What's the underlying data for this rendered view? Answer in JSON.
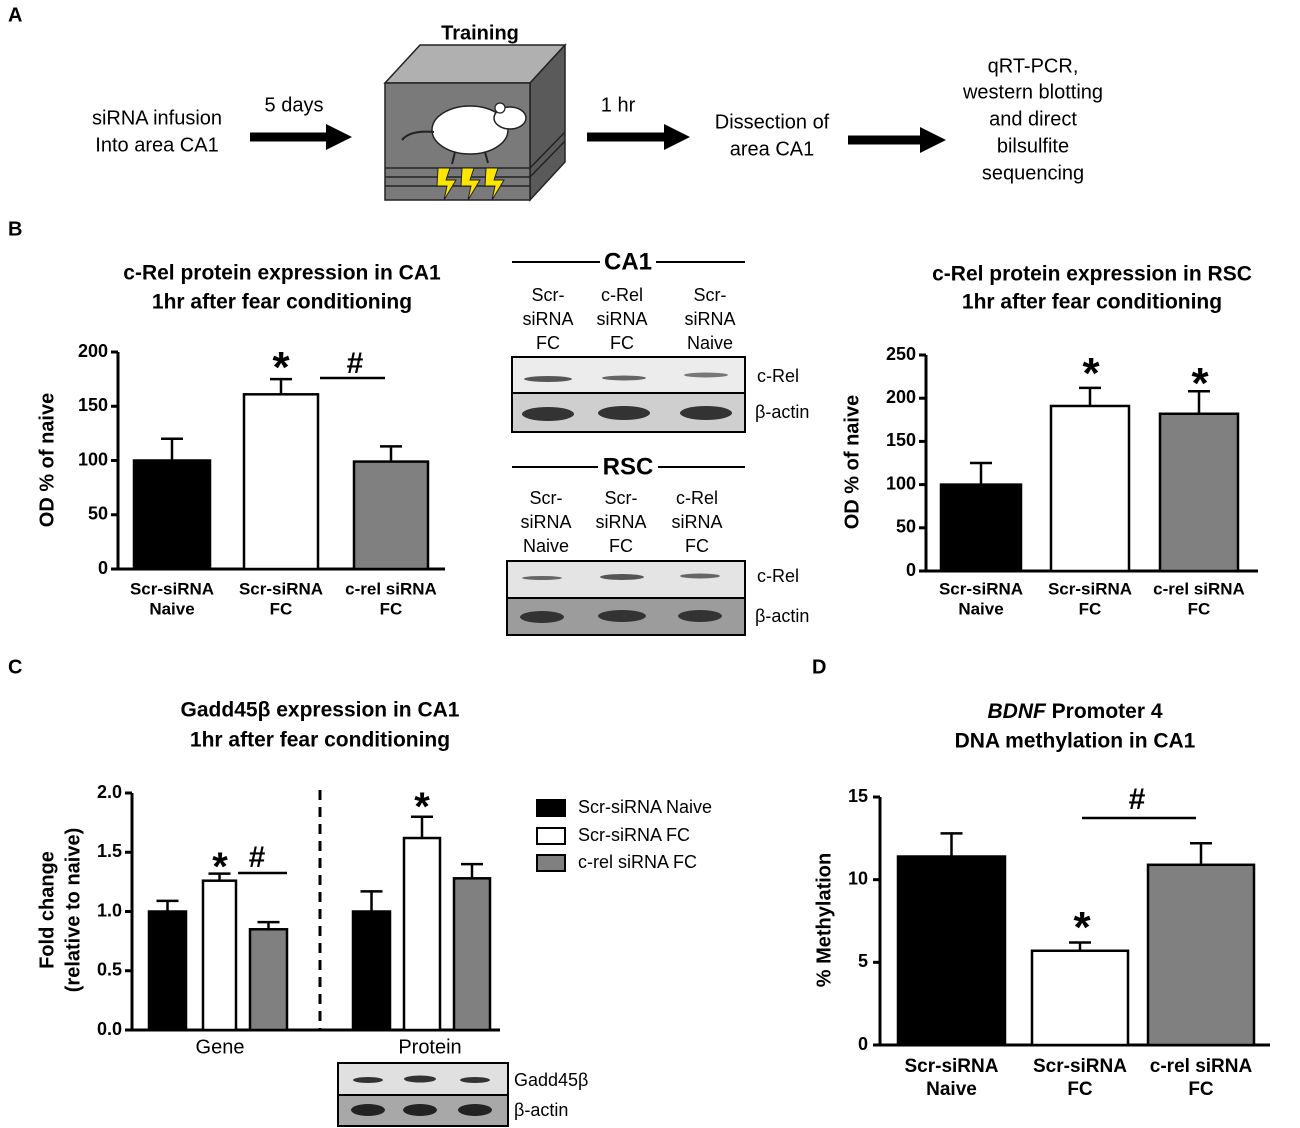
{
  "panels": [
    "A",
    "B",
    "C",
    "D"
  ],
  "diagram": {
    "infusion": [
      "siRNA infusion",
      "Into area CA1"
    ],
    "delay1": "5 days",
    "training": "Training",
    "delay2": "1 hr",
    "dissection": [
      "Dissection of",
      "area CA1"
    ],
    "analysis": [
      "qRT-PCR,",
      "western blotting",
      "and direct",
      "bilsulfite",
      "sequencing"
    ]
  },
  "blots": {
    "ca1": {
      "title": "CA1",
      "lanes": [
        [
          "Scr-",
          "siRNA",
          "FC"
        ],
        [
          "c-Rel",
          "siRNA",
          "FC"
        ],
        [
          "Scr-",
          "siRNA",
          "Naive"
        ]
      ],
      "bands": [
        "c-Rel",
        "β-actin"
      ]
    },
    "rsc": {
      "title": "RSC",
      "lanes": [
        [
          "Scr-",
          "siRNA",
          "Naive"
        ],
        [
          "Scr-",
          "siRNA",
          "FC"
        ],
        [
          "c-Rel",
          "siRNA",
          "FC"
        ]
      ],
      "bands": [
        "c-Rel",
        "β-actin"
      ]
    },
    "gadd": {
      "bands": [
        "Gadd45β",
        "β-actin"
      ]
    }
  },
  "chart_data": [
    {
      "type": "bar",
      "title": [
        "c-Rel protein expression in CA1",
        "1hr after fear conditioning"
      ],
      "ylabel": [
        "OD % of naive"
      ],
      "categories": [
        [
          "Scr-siRNA",
          "Naive"
        ],
        [
          "Scr-siRNA",
          "FC"
        ],
        [
          "c-rel siRNA",
          "FC"
        ]
      ],
      "values": [
        100,
        161,
        99
      ],
      "errors": [
        20,
        14,
        14
      ],
      "colors": [
        "#000000",
        "#ffffff",
        "#808080"
      ],
      "ylim": [
        0,
        200
      ],
      "yticks": [
        0,
        50,
        100,
        150,
        200
      ],
      "annotations": [
        "*",
        "#"
      ]
    },
    {
      "type": "bar",
      "title": [
        "c-Rel protein expression in RSC",
        "1hr after fear conditioning"
      ],
      "ylabel": [
        "OD % of naive"
      ],
      "categories": [
        [
          "Scr-siRNA",
          "Naive"
        ],
        [
          "Scr-siRNA",
          "FC"
        ],
        [
          "c-rel siRNA",
          "FC"
        ]
      ],
      "values": [
        100,
        191,
        182
      ],
      "errors": [
        25,
        21,
        26
      ],
      "colors": [
        "#000000",
        "#ffffff",
        "#808080"
      ],
      "ylim": [
        0,
        250
      ],
      "yticks": [
        0,
        50,
        100,
        150,
        200,
        250
      ],
      "annotations": [
        "*",
        "*"
      ]
    },
    {
      "type": "bar",
      "title": [
        "Gadd45β expression in CA1",
        "1hr after fear conditioning"
      ],
      "ylabel": [
        "Fold change",
        "(relative to naive)"
      ],
      "categories": [
        "Gene",
        "Protein"
      ],
      "series": [
        {
          "name": "Scr-siRNA Naive",
          "color": "#000000",
          "values": [
            1.0,
            1.0
          ],
          "errors": [
            0.09,
            0.17
          ]
        },
        {
          "name": "Scr-siRNA FC",
          "color": "#ffffff",
          "values": [
            1.26,
            1.62
          ],
          "errors": [
            0.06,
            0.18
          ]
        },
        {
          "name": "c-rel siRNA FC",
          "color": "#808080",
          "values": [
            0.85,
            1.28
          ],
          "errors": [
            0.06,
            0.12
          ]
        }
      ],
      "ylim": [
        0,
        2.0
      ],
      "yticks": [
        {
          "value": 0,
          "label": "0.0"
        },
        0.5,
        {
          "value": 1,
          "label": "1.0"
        },
        1.5,
        {
          "value": 2,
          "label": "2.0"
        }
      ],
      "annotations": [
        "*",
        "#",
        "*"
      ]
    },
    {
      "type": "bar",
      "title": [
        [
          "BDNF",
          " Promoter 4"
        ],
        "DNA methylation in CA1"
      ],
      "ylabel": [
        "% Methylation"
      ],
      "categories": [
        [
          "Scr-siRNA",
          "Naive"
        ],
        [
          "Scr-siRNA",
          "FC"
        ],
        [
          "c-rel siRNA",
          "FC"
        ]
      ],
      "values": [
        11.4,
        5.7,
        10.9
      ],
      "errors": [
        1.4,
        0.5,
        1.3
      ],
      "colors": [
        "#000000",
        "#ffffff",
        "#808080"
      ],
      "ylim": [
        0,
        15
      ],
      "yticks": [
        0,
        5,
        10,
        15
      ],
      "annotations": [
        "*",
        "#"
      ]
    }
  ]
}
